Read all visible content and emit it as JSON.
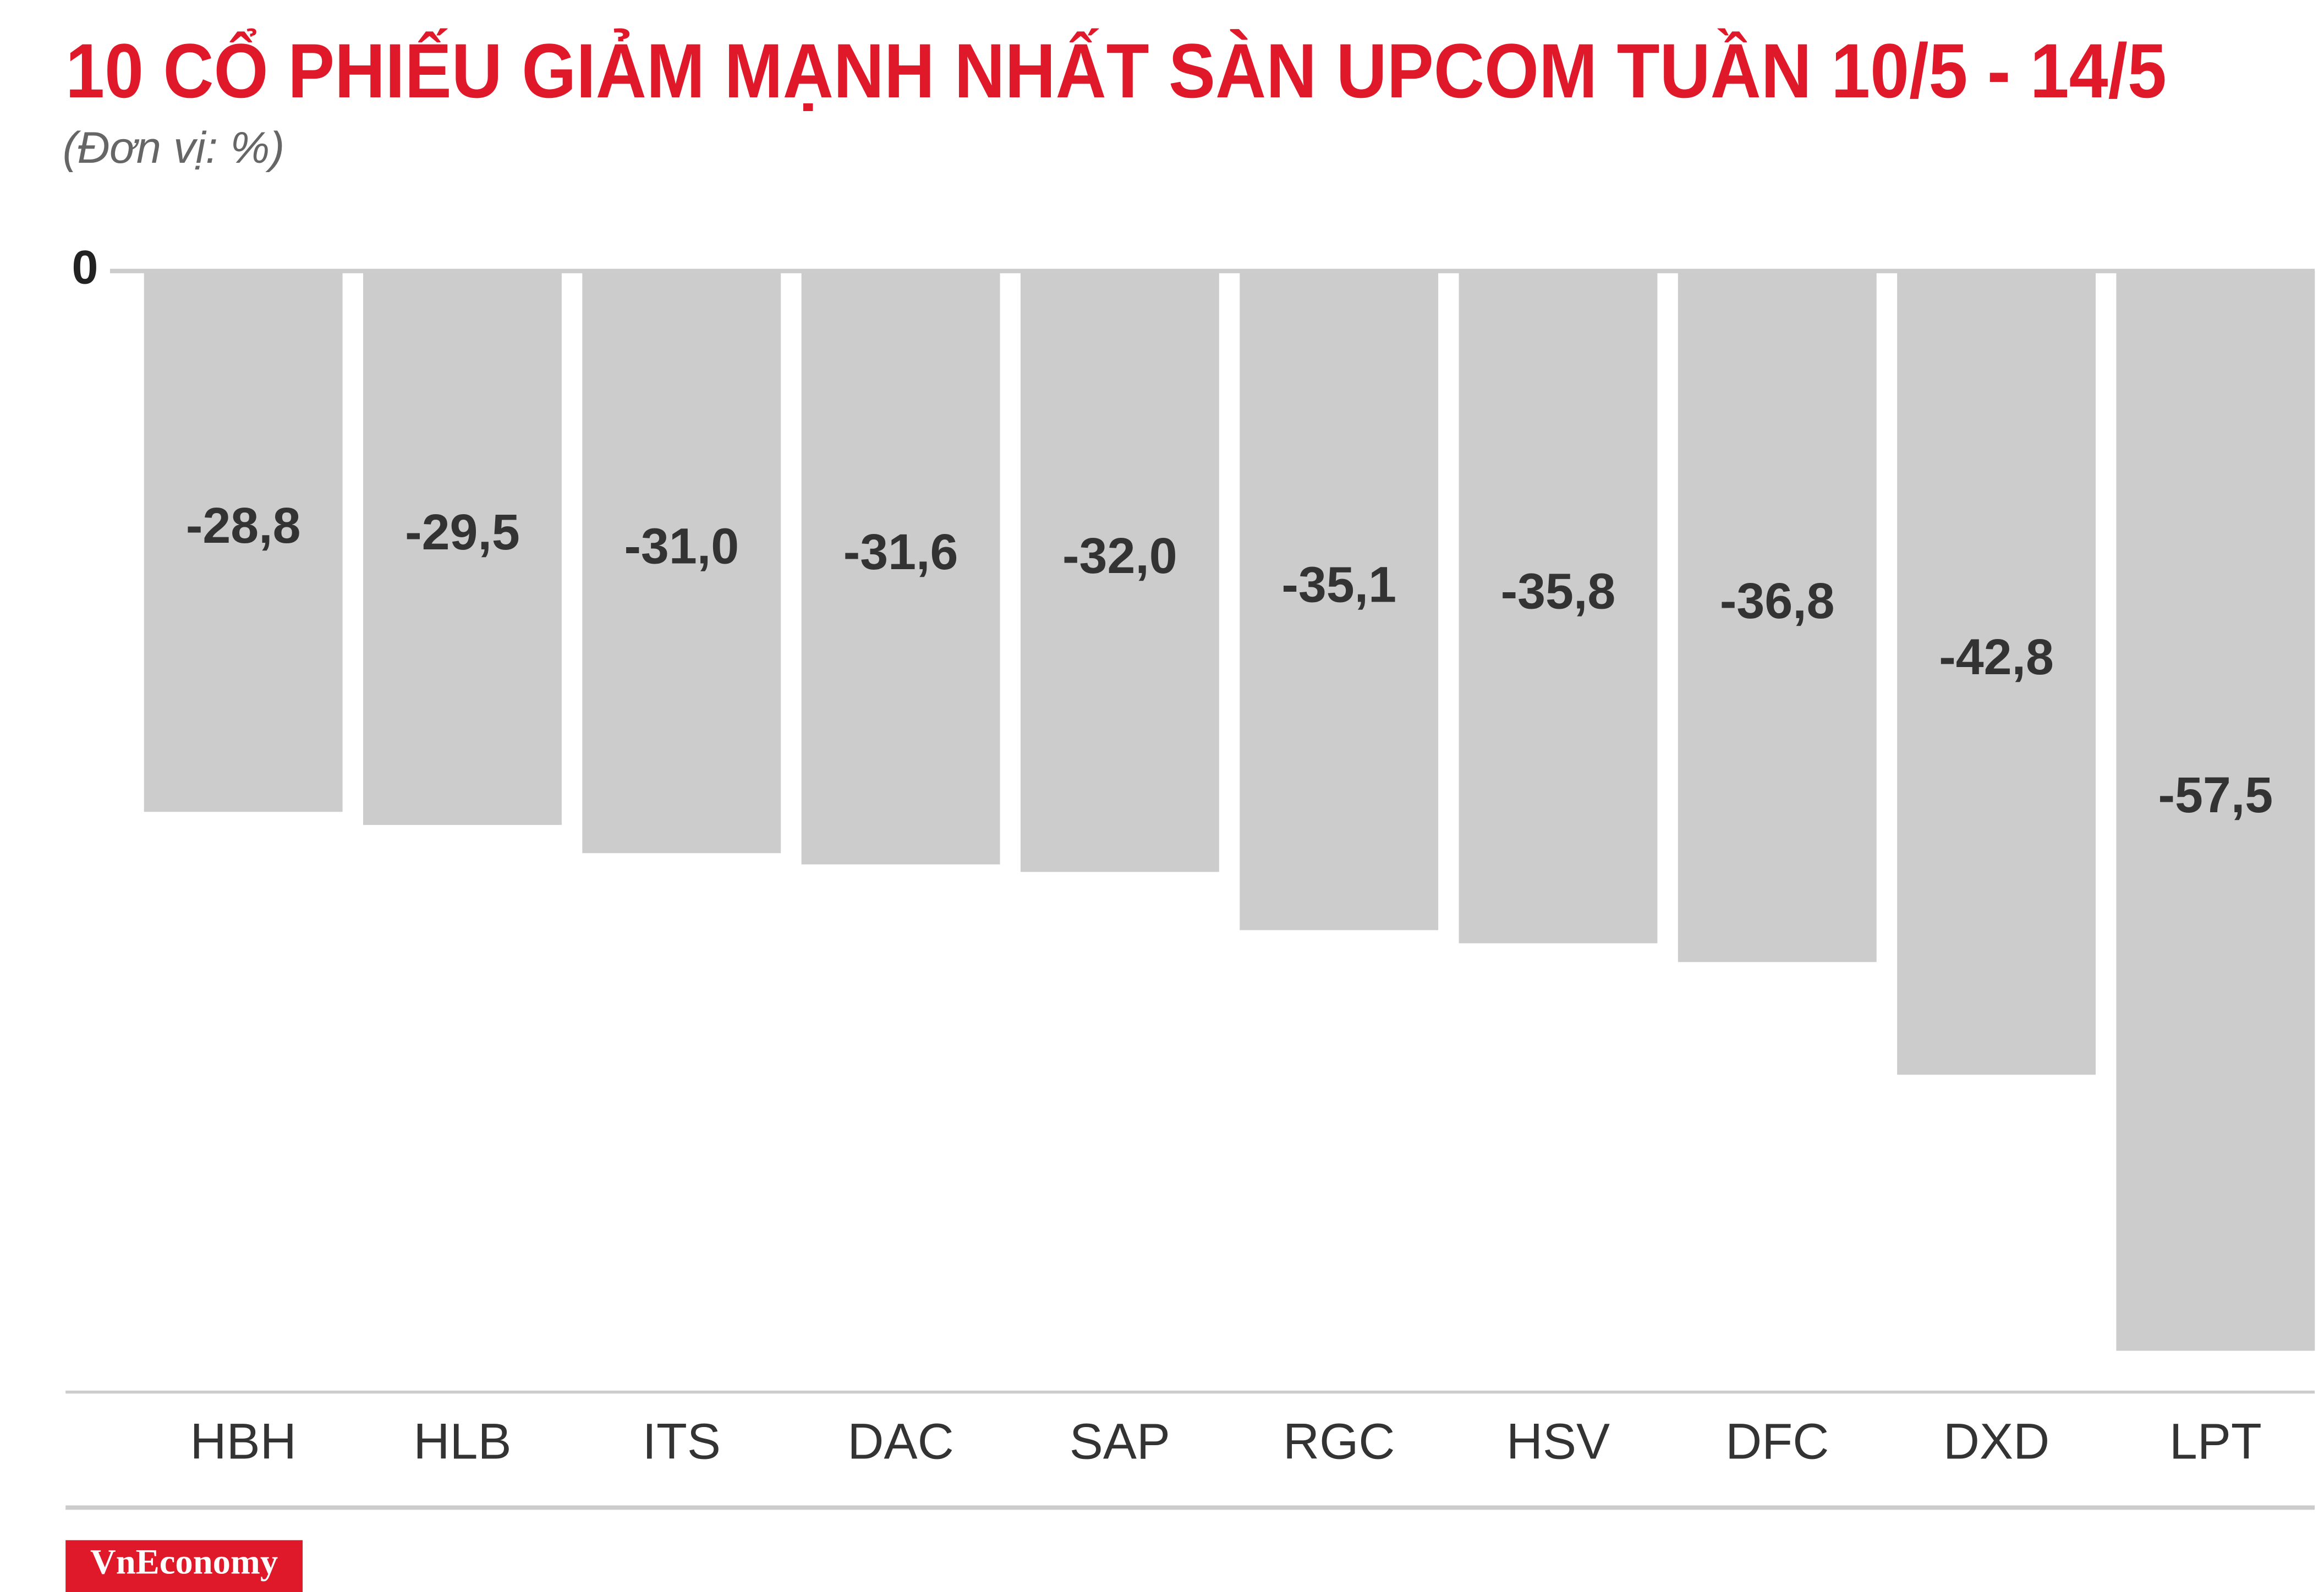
{
  "chart_data": {
    "type": "bar",
    "title": "10 CỔ PHIẾU GIẢM MẠNH NHẤT SÀN UPCOM TUẦN 10/5 - 14/5",
    "subtitle": "(Đơn vị: %)",
    "categories": [
      "HBH",
      "HLB",
      "ITS",
      "DAC",
      "SAP",
      "RGC",
      "HSV",
      "DFC",
      "DXD",
      "LPT"
    ],
    "values": [
      -28.8,
      -29.5,
      -31.0,
      -31.6,
      -32.0,
      -35.1,
      -35.8,
      -36.8,
      -42.8,
      -57.5
    ],
    "value_labels": [
      "-28,8",
      "-29,5",
      "-31,0",
      "-31,6",
      "-32,0",
      "-35,1",
      "-35,8",
      "-36,8",
      "-42,8",
      "-57,5"
    ],
    "color": "#cccccc",
    "ylim": [
      -59.7,
      0
    ],
    "yticks": [
      0
    ],
    "source": "VnEconomy"
  }
}
